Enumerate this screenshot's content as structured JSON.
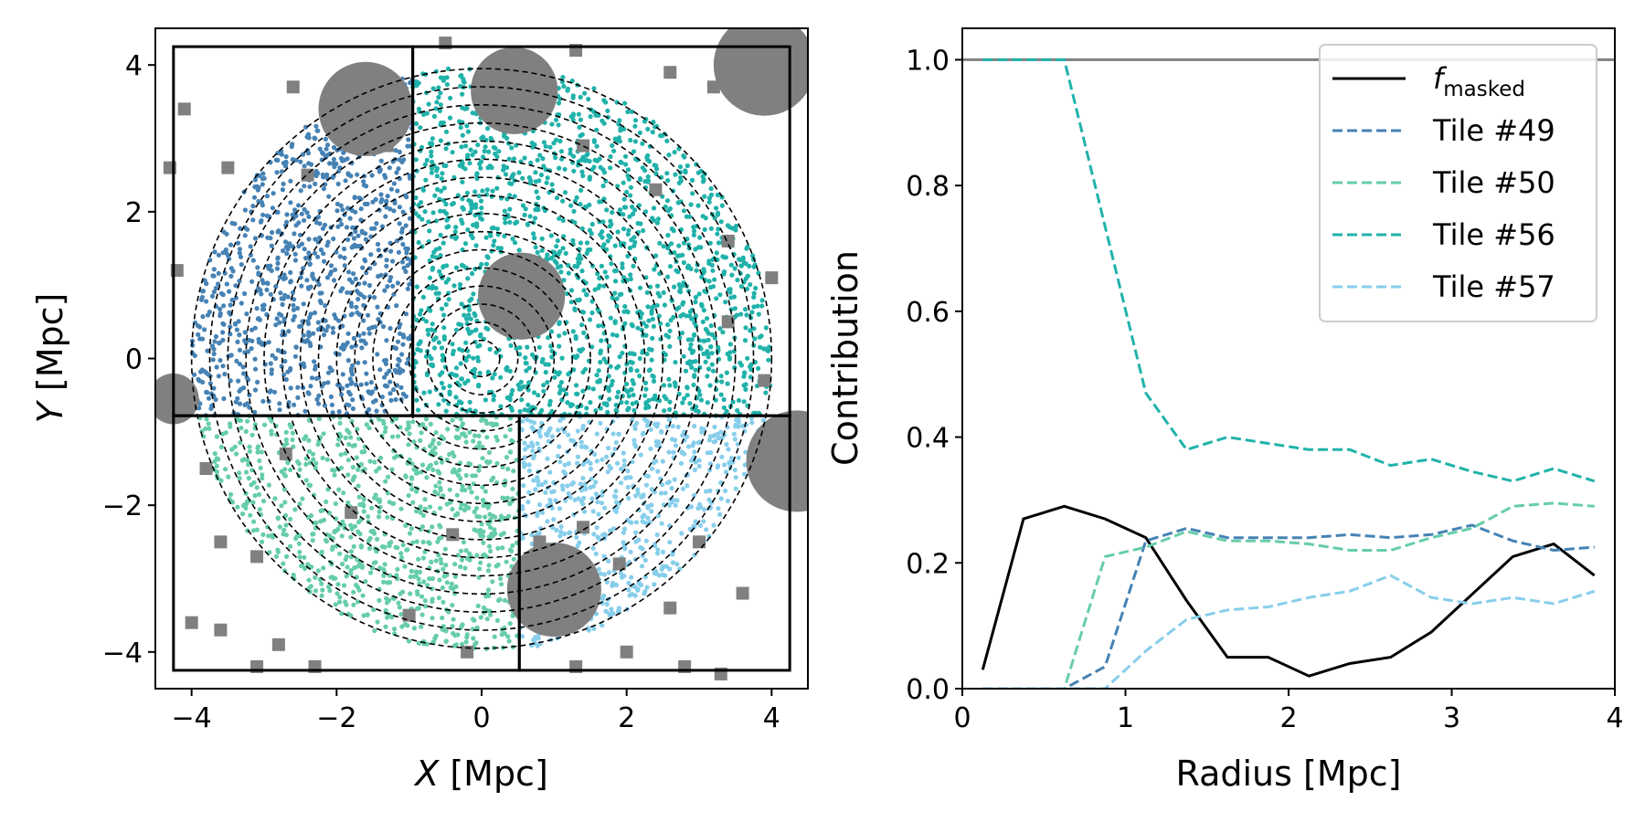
{
  "chart_data": [
    {
      "type": "scatter",
      "xlabel_var": "X",
      "xlabel_unit": " [Mpc]",
      "ylabel_var": "Y",
      "ylabel_unit": " [Mpc]",
      "xlim": [
        -4.5,
        4.5
      ],
      "ylim": [
        -4.5,
        4.5
      ],
      "xticks": [
        -4,
        -2,
        0,
        2,
        4
      ],
      "yticks": [
        -4,
        -2,
        0,
        2,
        4
      ],
      "xtick_labels": [
        "−4",
        "−2",
        "0",
        "2",
        "4"
      ],
      "ytick_labels": [
        "−4",
        "−2",
        "0",
        "2",
        "4"
      ],
      "annuli_radii": [
        0.25,
        0.5,
        0.75,
        1.0,
        1.25,
        1.5,
        1.75,
        2.0,
        2.25,
        2.5,
        2.75,
        3.0,
        3.25,
        3.5,
        3.75,
        4.0
      ],
      "tiles": [
        {
          "name": "Tile #49",
          "color": "#4682b4",
          "x_range": [
            -4.25,
            -0.95
          ],
          "y_range": [
            -0.78,
            4.25
          ]
        },
        {
          "name": "Tile #56",
          "color": "#20b2aa",
          "x_range": [
            -0.95,
            4.25
          ],
          "y_range": [
            -0.78,
            4.25
          ]
        },
        {
          "name": "Tile #50",
          "color": "#66cdaa",
          "x_range": [
            -4.25,
            0.52
          ],
          "y_range": [
            -4.25,
            -0.78
          ]
        },
        {
          "name": "Tile #57",
          "color": "#87ceeb",
          "x_range": [
            0.52,
            4.25
          ],
          "y_range": [
            -4.25,
            -0.78
          ]
        }
      ],
      "masks_large": [
        {
          "x": -1.6,
          "y": 3.4,
          "r": 0.65
        },
        {
          "x": 0.45,
          "y": 3.65,
          "r": 0.6
        },
        {
          "x": 0.55,
          "y": 0.85,
          "r": 0.6
        },
        {
          "x": 3.9,
          "y": 4.0,
          "r": 0.7
        },
        {
          "x": 4.35,
          "y": -1.4,
          "r": 0.7
        },
        {
          "x": 1.0,
          "y": -3.15,
          "r": 0.65
        },
        {
          "x": -4.25,
          "y": -0.55,
          "r": 0.35
        }
      ],
      "masks_small": [
        {
          "x": -4.1,
          "y": 3.4
        },
        {
          "x": -3.5,
          "y": 2.6
        },
        {
          "x": -2.4,
          "y": 2.5
        },
        {
          "x": -4.2,
          "y": 1.2
        },
        {
          "x": -1.3,
          "y": 2.9
        },
        {
          "x": 1.4,
          "y": 2.9
        },
        {
          "x": 2.6,
          "y": 3.9
        },
        {
          "x": 3.2,
          "y": 3.7
        },
        {
          "x": 3.4,
          "y": 1.6
        },
        {
          "x": 4.0,
          "y": 1.1
        },
        {
          "x": 3.9,
          "y": -0.3
        },
        {
          "x": 2.4,
          "y": 2.3
        },
        {
          "x": -3.8,
          "y": -1.5
        },
        {
          "x": -2.7,
          "y": -1.3
        },
        {
          "x": -1.8,
          "y": -2.1
        },
        {
          "x": -3.6,
          "y": -2.5
        },
        {
          "x": -3.1,
          "y": -2.7
        },
        {
          "x": -4.0,
          "y": -3.6
        },
        {
          "x": -3.6,
          "y": -3.7
        },
        {
          "x": -2.8,
          "y": -3.9
        },
        {
          "x": -3.1,
          "y": -4.2
        },
        {
          "x": -2.3,
          "y": -4.2
        },
        {
          "x": -1.0,
          "y": -3.5
        },
        {
          "x": -0.2,
          "y": -4.0
        },
        {
          "x": 1.4,
          "y": -2.3
        },
        {
          "x": 1.9,
          "y": -2.8
        },
        {
          "x": 2.6,
          "y": -3.4
        },
        {
          "x": 3.0,
          "y": -2.5
        },
        {
          "x": 3.6,
          "y": -3.2
        },
        {
          "x": 2.0,
          "y": -4.0
        },
        {
          "x": 1.3,
          "y": -4.2
        },
        {
          "x": 3.3,
          "y": -4.3
        },
        {
          "x": 0.8,
          "y": -2.5
        },
        {
          "x": -0.4,
          "y": -2.4
        },
        {
          "x": 2.8,
          "y": -4.2
        },
        {
          "x": -4.3,
          "y": 2.6
        },
        {
          "x": -0.5,
          "y": 4.3
        },
        {
          "x": 1.3,
          "y": 4.2
        },
        {
          "x": 3.4,
          "y": 0.5
        },
        {
          "x": -2.6,
          "y": 3.7
        }
      ]
    },
    {
      "type": "line",
      "xlabel": "Radius [Mpc]",
      "ylabel": "Contribution",
      "xlim": [
        0,
        4
      ],
      "ylim": [
        0,
        1.05
      ],
      "xticks": [
        0,
        1,
        2,
        3,
        4
      ],
      "yticks": [
        0.0,
        0.2,
        0.4,
        0.6,
        0.8,
        1.0
      ],
      "xtick_labels": [
        "0",
        "1",
        "2",
        "3",
        "4"
      ],
      "ytick_labels": [
        "0.0",
        "0.2",
        "0.4",
        "0.6",
        "0.8",
        "1.0"
      ],
      "hline": {
        "y": 1.0,
        "color": "#808080"
      },
      "x": [
        0.125,
        0.375,
        0.625,
        0.875,
        1.125,
        1.375,
        1.625,
        1.875,
        2.125,
        2.375,
        2.625,
        2.875,
        3.125,
        3.375,
        3.625,
        3.875
      ],
      "legend_position": "top-right",
      "series": [
        {
          "name_main": "f",
          "name_sub": "masked",
          "color": "#000000",
          "dash": "solid",
          "values": [
            0.03,
            0.27,
            0.29,
            0.27,
            0.24,
            0.14,
            0.05,
            0.05,
            0.02,
            0.04,
            0.05,
            0.09,
            0.15,
            0.21,
            0.23,
            0.18
          ]
        },
        {
          "name": "Tile #49",
          "color": "#4682b4",
          "dash": "dashed",
          "values": [
            0.0,
            0.0,
            0.0,
            0.035,
            0.235,
            0.255,
            0.24,
            0.24,
            0.24,
            0.245,
            0.24,
            0.245,
            0.26,
            0.235,
            0.22,
            0.225
          ]
        },
        {
          "name": "Tile #50",
          "color": "#66cdaa",
          "dash": "dashed",
          "values": [
            0.0,
            0.0,
            0.0,
            0.21,
            0.225,
            0.25,
            0.235,
            0.235,
            0.23,
            0.22,
            0.22,
            0.24,
            0.255,
            0.29,
            0.295,
            0.29
          ]
        },
        {
          "name": "Tile #56",
          "color": "#20b2aa",
          "dash": "dashed",
          "values": [
            1.0,
            1.0,
            1.0,
            0.735,
            0.47,
            0.38,
            0.4,
            0.39,
            0.38,
            0.38,
            0.355,
            0.365,
            0.345,
            0.33,
            0.35,
            0.33
          ]
        },
        {
          "name": "Tile #57",
          "color": "#87ceeb",
          "dash": "dashed",
          "values": [
            0.0,
            0.0,
            0.0,
            0.0,
            0.06,
            0.11,
            0.125,
            0.13,
            0.145,
            0.155,
            0.18,
            0.145,
            0.135,
            0.145,
            0.135,
            0.155
          ]
        }
      ]
    }
  ]
}
